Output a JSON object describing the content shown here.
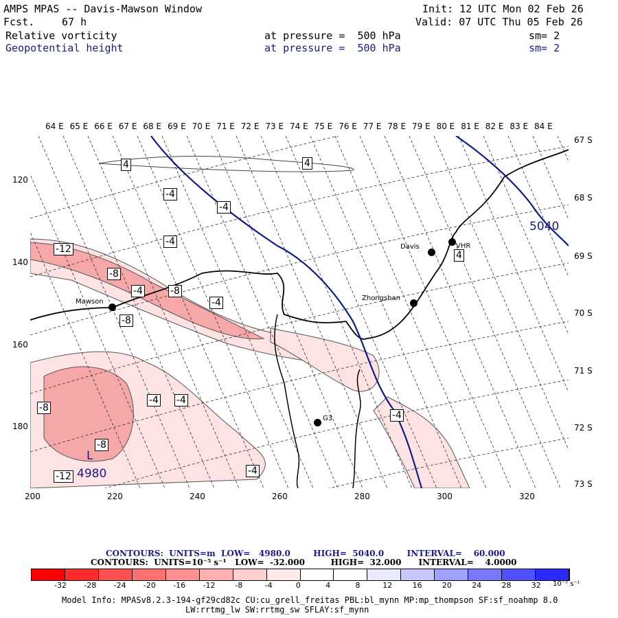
{
  "header": {
    "title": "AMPS MPAS -- Davis-Mawson Window",
    "fcst_label": "Fcst.",
    "fcst_value": "67 h",
    "init": "Init: 12 UTC Mon 02 Feb 26",
    "valid": "Valid: 07 UTC Thu 05 Feb 26",
    "field1": {
      "name": "Relative vorticity",
      "pressure": "at pressure =  500 hPa",
      "sm": "sm= 2"
    },
    "field2": {
      "name": "Geopotential height",
      "pressure": "at pressure =  500 hPa",
      "sm": "sm= 2"
    }
  },
  "map": {
    "lon_labels": [
      "64 E",
      "65 E",
      "66 E",
      "67 E",
      "68 E",
      "69 E",
      "70 E",
      "71 E",
      "72 E",
      "73 E",
      "74 E",
      "75 E",
      "76 E",
      "77 E",
      "78 E",
      "79 E",
      "80 E",
      "81 E",
      "82 E",
      "83 E",
      "84 E"
    ],
    "lat_labels": [
      "67 S",
      "68 S",
      "69 S",
      "70 S",
      "71 S",
      "72 S",
      "73 S"
    ],
    "y_ticks": [
      "120",
      "140",
      "160",
      "180"
    ],
    "x_ticks": [
      "200",
      "220",
      "240",
      "260",
      "280",
      "300",
      "320"
    ],
    "stations": {
      "davis": "Davis",
      "mawson": "Mawson",
      "zhongshan": "Zhongshan",
      "vhr": "VHR",
      "g3": "G3"
    },
    "contour_labels": {
      "c1": "4",
      "c2": "4",
      "c3": "-4",
      "c4": "-4",
      "c5": "-4",
      "c6": "-12",
      "c7": "-8",
      "c8": "-4",
      "c9": "-8",
      "c10": "-4",
      "c11": "-8",
      "c12": "4",
      "c13": "-8",
      "c14": "-4",
      "c15": "-4",
      "c16": "-4",
      "c17": "-8",
      "c18": "-12",
      "c19": "-4"
    },
    "height_labels": {
      "h1": "5040",
      "h2": "4980",
      "low": "L"
    },
    "colors": {
      "height_line": "#0b1a8c",
      "vort_fill_light": "#fde6e6",
      "vort_fill_mid": "#f8b6b6"
    }
  },
  "footer": {
    "contours1": "CONTOURS:  UNITS=m  LOW=   4980.0        HIGH=  5040.0        INTERVAL=    60.000",
    "contours2": "CONTOURS:  UNITS=10⁻⁵ s⁻¹   LOW=  -32.000         HIGH=  32.000      INTERVAL=    4.0000",
    "colorbar_values": [
      "-32",
      "-28",
      "-24",
      "-20",
      "-16",
      "-12",
      "-8",
      "-4",
      "0",
      "4",
      "8",
      "12",
      "16",
      "20",
      "24",
      "28",
      "32"
    ],
    "colorbar_unit": "10⁻⁵ s⁻¹",
    "colorbar_colors": [
      "#ff0000",
      "#ff2a2a",
      "#ff5050",
      "#ff7070",
      "#ff9090",
      "#ffb0b0",
      "#ffd0d0",
      "#ffeaea",
      "#ffffff",
      "#ffffff",
      "#eaeaff",
      "#c8c8ff",
      "#a0a0ff",
      "#7878ff",
      "#5050ff",
      "#2a2aff",
      "#0000ff"
    ],
    "model_info": "Model Info: MPASv8.2.3-194-gf29cd82c CU:cu_grell_freitas PBL:bl_mynn MP:mp_thompson SF:sf_noahmp 8.0",
    "model_info2": "LW:rrtmg_lw SW:rrtmg_sw SFLAY:sf_mynn"
  }
}
